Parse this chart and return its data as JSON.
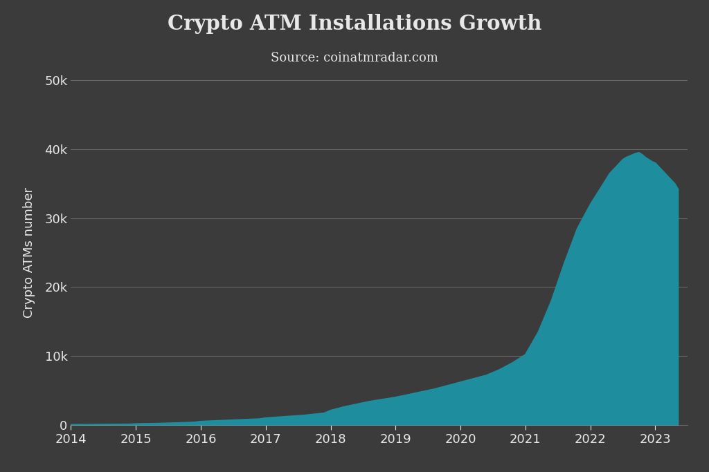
{
  "title": "Crypto ATM Installations Growth",
  "subtitle": "Source: coinatmradar.com",
  "ylabel": "Crypto ATMs number",
  "background_color": "#3b3b3b",
  "fill_color": "#1e8e9e",
  "line_color": "#1e8e9e",
  "text_color": "#e8e8e8",
  "grid_color": "#aaaaaa",
  "ylim": [
    0,
    50000
  ],
  "yticks": [
    0,
    10000,
    20000,
    30000,
    40000,
    50000
  ],
  "ytick_labels": [
    "0",
    "10k",
    "20k",
    "30k",
    "40k",
    "50k"
  ],
  "years": [
    2014.0,
    2014.3,
    2014.6,
    2014.9,
    2015.0,
    2015.3,
    2015.6,
    2015.9,
    2016.0,
    2016.3,
    2016.6,
    2016.9,
    2017.0,
    2017.3,
    2017.6,
    2017.9,
    2018.0,
    2018.2,
    2018.4,
    2018.6,
    2018.8,
    2019.0,
    2019.2,
    2019.4,
    2019.6,
    2019.8,
    2020.0,
    2020.2,
    2020.4,
    2020.6,
    2020.8,
    2021.0,
    2021.2,
    2021.4,
    2021.6,
    2021.8,
    2022.0,
    2022.1,
    2022.2,
    2022.3,
    2022.4,
    2022.45,
    2022.5,
    2022.55,
    2022.6,
    2022.65,
    2022.7,
    2022.75,
    2022.8,
    2022.85,
    2022.9,
    2022.95,
    2023.0,
    2023.1,
    2023.2,
    2023.3,
    2023.35
  ],
  "values": [
    30,
    50,
    80,
    100,
    150,
    200,
    280,
    380,
    500,
    620,
    740,
    860,
    1000,
    1200,
    1400,
    1700,
    2100,
    2600,
    3000,
    3400,
    3700,
    4000,
    4400,
    4800,
    5200,
    5700,
    6200,
    6700,
    7200,
    8000,
    9000,
    10200,
    13500,
    18000,
    23500,
    28500,
    32000,
    33500,
    35000,
    36500,
    37500,
    38000,
    38500,
    38800,
    39000,
    39200,
    39400,
    39500,
    39200,
    38800,
    38500,
    38200,
    38000,
    37000,
    36000,
    35000,
    34200
  ],
  "xlim": [
    2014.0,
    2023.5
  ],
  "xticks": [
    2014,
    2015,
    2016,
    2017,
    2018,
    2019,
    2020,
    2021,
    2022,
    2023
  ]
}
